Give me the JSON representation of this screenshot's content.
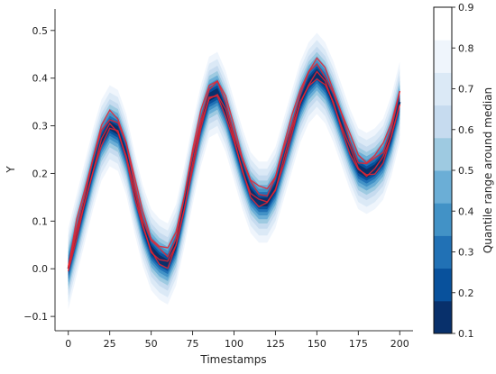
{
  "chart_data": {
    "type": "area",
    "xlabel": "Timestamps",
    "ylabel": "Y",
    "xlim": [
      -8,
      208
    ],
    "ylim": [
      -0.13,
      0.545
    ],
    "xticks": [
      "0",
      "25",
      "50",
      "75",
      "100",
      "125",
      "150",
      "175",
      "200"
    ],
    "xtick_values": [
      0,
      25,
      50,
      75,
      100,
      125,
      150,
      175,
      200
    ],
    "yticks": [
      "−0.1",
      "0.0",
      "0.1",
      "0.2",
      "0.3",
      "0.4",
      "0.5"
    ],
    "ytick_values": [
      -0.1,
      0.0,
      0.1,
      0.2,
      0.3,
      0.4,
      0.5
    ],
    "spines": "left-bottom",
    "grid": false,
    "median": {
      "x": [
        0,
        5,
        10,
        15,
        20,
        25,
        30,
        35,
        40,
        45,
        50,
        55,
        60,
        65,
        70,
        75,
        80,
        85,
        90,
        95,
        100,
        105,
        110,
        115,
        120,
        125,
        130,
        135,
        140,
        145,
        150,
        155,
        160,
        165,
        170,
        175,
        180,
        185,
        190,
        195,
        200
      ],
      "y": [
        0.0,
        0.07,
        0.14,
        0.21,
        0.27,
        0.3,
        0.29,
        0.24,
        0.16,
        0.09,
        0.04,
        0.02,
        0.01,
        0.05,
        0.13,
        0.22,
        0.3,
        0.36,
        0.37,
        0.33,
        0.27,
        0.21,
        0.16,
        0.14,
        0.14,
        0.17,
        0.23,
        0.29,
        0.35,
        0.39,
        0.41,
        0.39,
        0.35,
        0.3,
        0.25,
        0.21,
        0.2,
        0.21,
        0.23,
        0.28,
        0.35
      ]
    },
    "quantile_bands": [
      0.9,
      0.8,
      0.7,
      0.6,
      0.5,
      0.4,
      0.3,
      0.2,
      0.1
    ],
    "quantile_halfwidths": [
      0.085,
      0.07,
      0.056,
      0.045,
      0.036,
      0.028,
      0.021,
      0.015,
      0.009
    ],
    "band_colors": [
      "#eff5fc",
      "#dbe9f6",
      "#c6dbef",
      "#9ecae1",
      "#6baed6",
      "#4292c6",
      "#2171b5",
      "#08519c",
      "#08306b"
    ],
    "red_trajectory_offsets": [
      0.0,
      0.018,
      -0.006,
      0.028
    ],
    "red_color": "#e8232f",
    "colorbar": {
      "label": "Quantile range around median",
      "ticks": [
        "0.1",
        "0.2",
        "0.3",
        "0.4",
        "0.5",
        "0.6",
        "0.7",
        "0.8",
        "0.9"
      ],
      "tick_values": [
        0.1,
        0.2,
        0.3,
        0.4,
        0.5,
        0.6,
        0.7,
        0.8,
        0.9
      ],
      "colors": [
        "#08306b",
        "#08519c",
        "#2171b5",
        "#4292c6",
        "#6baed6",
        "#9ecae1",
        "#c6dbef",
        "#dbe9f6",
        "#eff5fc",
        "#ffffff"
      ],
      "range": [
        0.1,
        0.9
      ]
    }
  }
}
